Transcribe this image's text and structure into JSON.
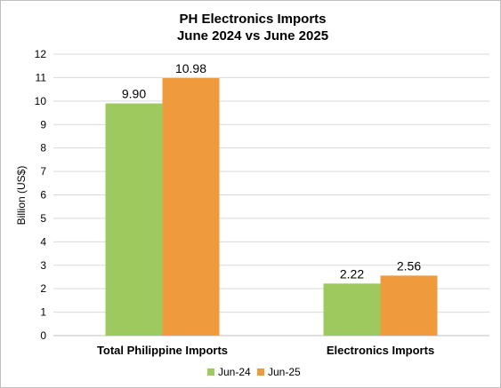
{
  "chart_data": {
    "type": "bar",
    "title": "PH Electronics Imports",
    "subtitle": "June 2024 vs June 2025",
    "ylabel": "Billion (US$)",
    "xlabel": "",
    "categories": [
      "Total Philippine Imports",
      "Electronics Imports"
    ],
    "series": [
      {
        "name": "Jun-24",
        "values": [
          9.9,
          2.22
        ],
        "labels": [
          "9.90",
          "2.22"
        ],
        "color": "#9dc95f"
      },
      {
        "name": "Jun-25",
        "values": [
          10.98,
          2.56
        ],
        "labels": [
          "10.98",
          "2.56"
        ],
        "color": "#f09a3e"
      }
    ],
    "ylim": [
      0,
      12
    ],
    "yticks": [
      0,
      1,
      2,
      3,
      4,
      5,
      6,
      7,
      8,
      9,
      10,
      11,
      12
    ],
    "grid": true,
    "legend_position": "bottom"
  }
}
